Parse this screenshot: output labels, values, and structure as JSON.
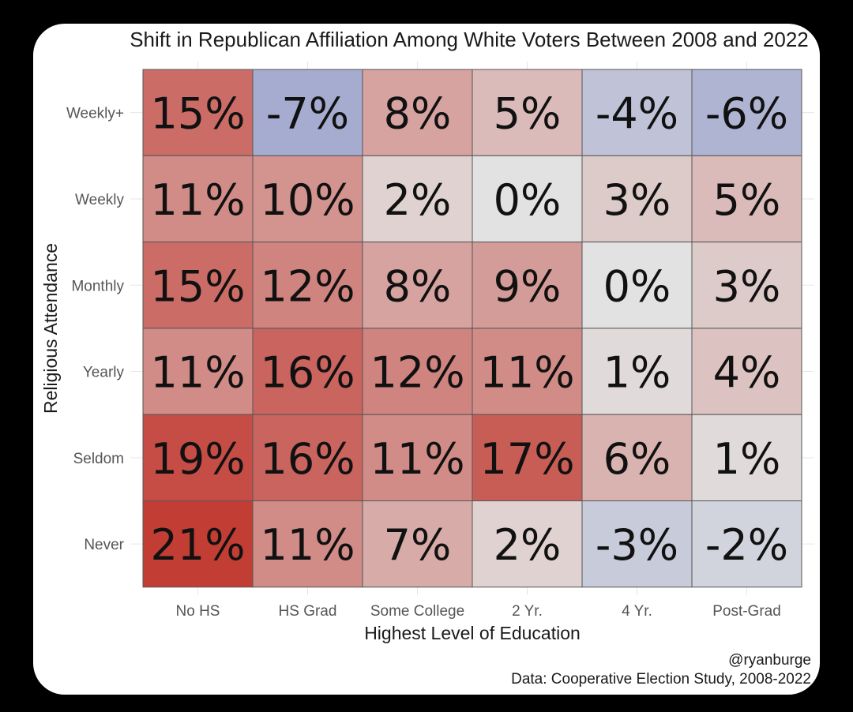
{
  "chart_data": {
    "type": "heatmap",
    "title": "Shift in Republican Affiliation Among White Voters Between 2008 and 2022",
    "xlabel": "Highest Level of Education",
    "ylabel": "Religious Attendance",
    "x_categories": [
      "No HS",
      "HS Grad",
      "Some College",
      "2 Yr.",
      "4 Yr.",
      "Post-Grad"
    ],
    "y_categories": [
      "Weekly+",
      "Weekly",
      "Monthly",
      "Yearly",
      "Seldom",
      "Never"
    ],
    "values": [
      [
        15,
        -7,
        8,
        5,
        -4,
        -6
      ],
      [
        11,
        10,
        2,
        0,
        3,
        5
      ],
      [
        15,
        12,
        8,
        9,
        0,
        3
      ],
      [
        11,
        16,
        12,
        11,
        1,
        4
      ],
      [
        19,
        16,
        11,
        17,
        6,
        1
      ],
      [
        21,
        11,
        7,
        2,
        -3,
        -2
      ]
    ],
    "labels": [
      [
        "15%",
        "-7%",
        "8%",
        "5%",
        "-4%",
        "-6%"
      ],
      [
        "11%",
        "10%",
        "2%",
        "0%",
        "3%",
        "5%"
      ],
      [
        "15%",
        "12%",
        "8%",
        "9%",
        "0%",
        "3%"
      ],
      [
        "11%",
        "16%",
        "12%",
        "11%",
        "1%",
        "4%"
      ],
      [
        "19%",
        "16%",
        "11%",
        "17%",
        "6%",
        "1%"
      ],
      [
        "21%",
        "11%",
        "7%",
        "2%",
        "-3%",
        "-2%"
      ]
    ],
    "color_scale": {
      "low": "#7b86c2",
      "mid": "#e2e2e2",
      "high": "#c0362c",
      "min_value": -12,
      "max_value": 22
    }
  },
  "caption": {
    "author": "@ryanburge",
    "source": "Data: Cooperative Election Study, 2008-2022"
  }
}
